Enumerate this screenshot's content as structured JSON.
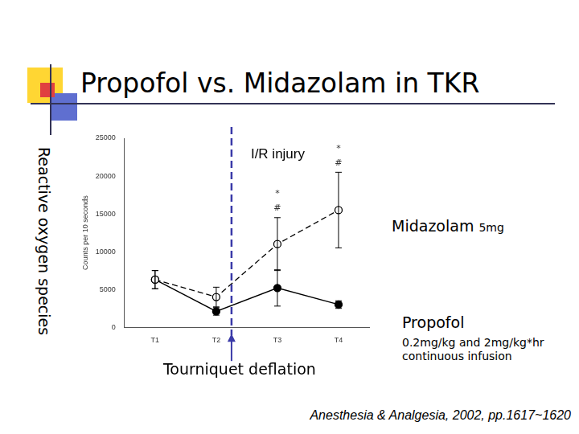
{
  "slide": {
    "title": "Propofol vs. Midazolam in TKR",
    "side_label": "Reactive oxygen species",
    "citation": "Anesthesia & Analgesia, 2002, pp.1617~1620"
  },
  "chart_data": {
    "type": "line",
    "y_label": "Counts per 10 seconds",
    "categories": [
      "T1",
      "T2",
      "T3",
      "T4"
    ],
    "series": [
      {
        "name": "Midazolam",
        "note": "5mg",
        "color": "#000000",
        "marker": "circle_open",
        "line_style": "dashed",
        "values": [
          6300,
          4000,
          11000,
          15500
        ],
        "errors": [
          1200,
          1300,
          3500,
          5000
        ],
        "significance": [
          null,
          null,
          [
            "*",
            "#"
          ],
          [
            "*",
            "#"
          ]
        ]
      },
      {
        "name": "Propofol",
        "note": "0.2mg/kg and 2mg/kg*hr continuous infusion",
        "color": "#000000",
        "marker": "circle",
        "line_style": "solid",
        "values": [
          6300,
          2100,
          5200,
          3000
        ],
        "errors": [
          1200,
          500,
          2400,
          500
        ],
        "significance": [
          null,
          null,
          null,
          null
        ]
      }
    ],
    "ylim": [
      0,
      25000
    ],
    "yticks": [
      0,
      5000,
      10000,
      15000,
      20000,
      25000
    ],
    "grid": false,
    "event": {
      "after": "T2",
      "label": "Tourniquet deflation",
      "region_label": "I/R injury",
      "color": "#3a3aa8"
    }
  }
}
